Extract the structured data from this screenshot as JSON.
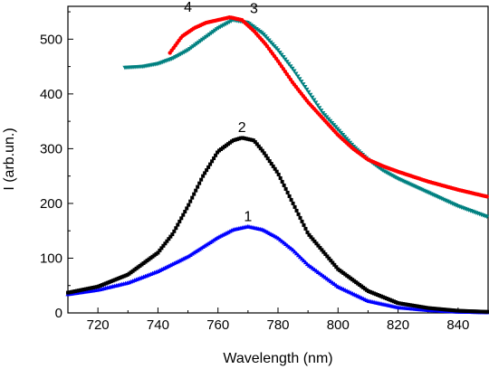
{
  "chart_data": {
    "type": "scatter",
    "xlabel": "Wavelength (nm)",
    "ylabel": "I (arb.un.)",
    "xlim": [
      710,
      850
    ],
    "ylim": [
      0,
      560
    ],
    "xticks": [
      "720",
      "740",
      "760",
      "780",
      "800",
      "820",
      "840"
    ],
    "yticks": [
      "0",
      "100",
      "200",
      "300",
      "400",
      "500"
    ],
    "grid": false,
    "series": [
      {
        "name": "1",
        "color": "#0000ff",
        "marker": "triangle-up",
        "x": [
          710,
          720,
          730,
          740,
          750,
          760,
          765,
          770,
          775,
          780,
          785,
          790,
          800,
          810,
          820,
          830,
          840,
          850
        ],
        "y": [
          34,
          42,
          55,
          76,
          103,
          138,
          152,
          158,
          152,
          137,
          115,
          88,
          48,
          22,
          10,
          5,
          2,
          1
        ]
      },
      {
        "name": "2",
        "color": "#000000",
        "marker": "square",
        "x": [
          710,
          720,
          730,
          740,
          745,
          750,
          755,
          760,
          765,
          768,
          772,
          775,
          780,
          785,
          790,
          800,
          810,
          820,
          830,
          840,
          850
        ],
        "y": [
          37,
          48,
          70,
          110,
          145,
          195,
          250,
          295,
          315,
          320,
          315,
          295,
          255,
          200,
          145,
          80,
          40,
          18,
          9,
          4,
          2
        ]
      },
      {
        "name": "3",
        "color": "#008080",
        "marker": "triangle-down",
        "x": [
          729,
          735,
          740,
          745,
          750,
          755,
          760,
          765,
          770,
          775,
          780,
          785,
          790,
          795,
          800,
          805,
          810,
          815,
          820,
          830,
          840,
          850
        ],
        "y": [
          448,
          450,
          455,
          465,
          480,
          500,
          520,
          535,
          530,
          510,
          480,
          445,
          405,
          365,
          335,
          305,
          280,
          260,
          245,
          220,
          195,
          175
        ]
      },
      {
        "name": "4",
        "color": "#ff0000",
        "marker": "circle",
        "x": [
          744,
          748,
          752,
          756,
          760,
          764,
          768,
          772,
          776,
          780,
          785,
          790,
          795,
          800,
          805,
          810,
          815,
          820,
          830,
          840,
          850
        ],
        "y": [
          475,
          505,
          520,
          530,
          535,
          540,
          535,
          515,
          490,
          460,
          420,
          385,
          355,
          325,
          300,
          280,
          268,
          258,
          240,
          225,
          212
        ]
      }
    ],
    "annotations": [
      {
        "text": "1",
        "x": 770,
        "y": 168
      },
      {
        "text": "2",
        "x": 768,
        "y": 330
      },
      {
        "text": "3",
        "x": 772,
        "y": 548
      },
      {
        "text": "4",
        "x": 750,
        "y": 550
      }
    ]
  }
}
